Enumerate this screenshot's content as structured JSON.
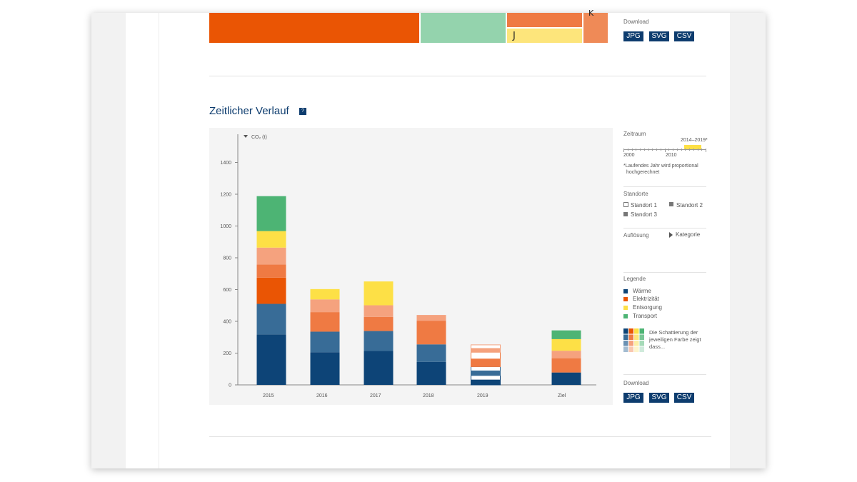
{
  "treemap": {
    "cells": [
      {
        "color": "#ea5504",
        "label": ""
      },
      {
        "color": "#94d3ad",
        "label": ""
      },
      {
        "color": "#ef7a43",
        "label": ""
      },
      {
        "color": "#fde57b",
        "label": "J"
      },
      {
        "color": "#ef8a57",
        "label": "K"
      }
    ]
  },
  "download_top": {
    "label": "Download",
    "buttons": [
      "JPG",
      "SVG",
      "CSV"
    ]
  },
  "section": {
    "title": "Zeitlicher Verlauf",
    "help": "?"
  },
  "sidebar": {
    "zeitraum": {
      "label": "Zeitraum",
      "range_label": "2014–2019*",
      "ticks": [
        "2000",
        "2010"
      ],
      "note_line1": "*Laufendes Jahr wird proportional",
      "note_line2": "hochgerechnet"
    },
    "standorte": {
      "label": "Standorte",
      "items": [
        {
          "label": "Standort 1",
          "state": "unchecked"
        },
        {
          "label": "Standort 2",
          "state": "checked"
        },
        {
          "label": "Standort 3",
          "state": "checked"
        }
      ]
    },
    "aufloesung": {
      "label": "Auflösung",
      "value": "Kategorie"
    },
    "legende": {
      "label": "Legende",
      "items": [
        {
          "label": "Wärme",
          "color": "#0d4477"
        },
        {
          "label": "Elektrizität",
          "color": "#ea5504"
        },
        {
          "label": "Entsorgung",
          "color": "#fde046"
        },
        {
          "label": "Transport",
          "color": "#4db474"
        }
      ],
      "shade_text_line1": "Die Schattierung der",
      "shade_text_line2": "jeweiligen Farbe zeigt",
      "shade_text_line3": "dass..."
    },
    "download": {
      "label": "Download",
      "buttons": [
        "JPG",
        "SVG",
        "CSV"
      ]
    }
  },
  "chart_data": {
    "type": "bar",
    "stacked": true,
    "ylabel": "CO₂ (t)",
    "ylim": [
      0,
      1600
    ],
    "yticks": [
      0,
      200,
      400,
      600,
      800,
      1000,
      1200,
      1400
    ],
    "categories": [
      "2015",
      "2016",
      "2017",
      "2018",
      "2019",
      "Ziel"
    ],
    "segment_colors": [
      "#0d4477",
      "#386c97",
      "#ea5504",
      "#ef7a43",
      "#f5a27e",
      "#fde046",
      "#4db474"
    ],
    "series": [
      {
        "name": "Wärme",
        "values": [
          320,
          205,
          220,
          195,
          135,
          80
        ]
      },
      {
        "name": "Elektrizität",
        "values": [
          360,
          215,
          255,
          185,
          100,
          90
        ]
      },
      {
        "name": "Entsorgung",
        "values": [
          105,
          75,
          75,
          55,
          55,
          75
        ]
      },
      {
        "name": "Transport",
        "values": [
          205,
          150,
          160,
          55,
          35,
          55
        ]
      }
    ],
    "segments": [
      [
        318,
        192,
        165,
        83,
        106,
        104,
        220
      ],
      [
        205,
        130,
        0,
        123,
        80,
        65,
        0
      ],
      [
        215,
        124,
        0,
        89,
        73,
        150,
        0
      ],
      [
        145,
        110,
        0,
        149,
        36,
        0,
        0
      ],
      [
        60,
        55,
        0,
        91,
        46,
        0,
        0
      ],
      [
        78,
        0,
        0,
        90,
        47,
        73,
        55
      ]
    ],
    "forecast_category": "2019"
  }
}
